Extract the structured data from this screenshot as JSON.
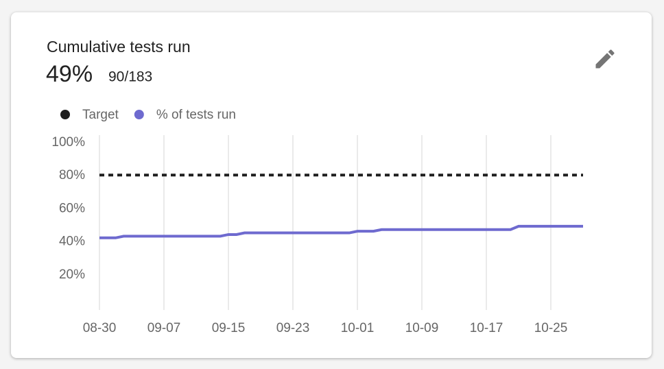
{
  "card": {
    "stat": "49%",
    "detail": "90/183"
  },
  "chart_data": {
    "type": "line",
    "title": "Cumulative tests run",
    "categories": [
      "08-30",
      null,
      null,
      null,
      null,
      null,
      null,
      null,
      "09-07",
      null,
      null,
      null,
      null,
      null,
      null,
      null,
      "09-15",
      null,
      null,
      null,
      null,
      null,
      null,
      null,
      "09-23",
      null,
      null,
      null,
      null,
      null,
      null,
      null,
      "10-01",
      null,
      null,
      null,
      null,
      null,
      null,
      null,
      "10-09",
      null,
      null,
      null,
      null,
      null,
      null,
      null,
      "10-17",
      null,
      null,
      null,
      null,
      null,
      null,
      null,
      "10-25",
      null,
      null,
      null,
      null
    ],
    "series": [
      {
        "name": "Target",
        "color": "#1f1f1f",
        "dash": true,
        "values": [
          80,
          80,
          80,
          80,
          80,
          80,
          80,
          80,
          80,
          80,
          80,
          80,
          80,
          80,
          80,
          80,
          80,
          80,
          80,
          80,
          80,
          80,
          80,
          80,
          80,
          80,
          80,
          80,
          80,
          80,
          80,
          80,
          80,
          80,
          80,
          80,
          80,
          80,
          80,
          80,
          80,
          80,
          80,
          80,
          80,
          80,
          80,
          80,
          80,
          80,
          80,
          80,
          80,
          80,
          80,
          80,
          80,
          80,
          80,
          80,
          80
        ]
      },
      {
        "name": "% of tests run",
        "color": "#6e6acf",
        "dash": false,
        "values": [
          42,
          42,
          42,
          43,
          43,
          43,
          43,
          43,
          43,
          43,
          43,
          43,
          43,
          43,
          43,
          43,
          44,
          44,
          45,
          45,
          45,
          45,
          45,
          45,
          45,
          45,
          45,
          45,
          45,
          45,
          45,
          45,
          46,
          46,
          46,
          47,
          47,
          47,
          47,
          47,
          47,
          47,
          47,
          47,
          47,
          47,
          47,
          47,
          47,
          47,
          47,
          47,
          49,
          49,
          49,
          49,
          49,
          49,
          49,
          49,
          49
        ]
      }
    ],
    "ylim": [
      0,
      100
    ],
    "yticks": [
      {
        "value": 20,
        "label": "20%"
      },
      {
        "value": 40,
        "label": "40%"
      },
      {
        "value": 60,
        "label": "60%"
      },
      {
        "value": 80,
        "label": "80%"
      },
      {
        "value": 100,
        "label": "100%"
      }
    ],
    "grid": "x"
  }
}
